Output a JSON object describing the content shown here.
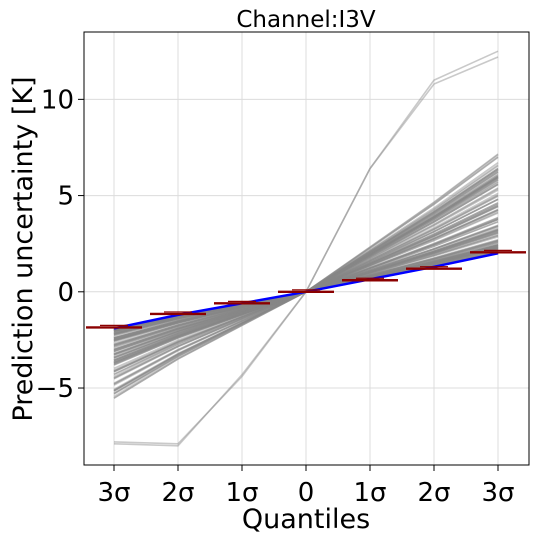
{
  "chart_data": {
    "type": "line",
    "title": "Channel:I3V",
    "xlabel": "Quantiles",
    "ylabel": "Prediction uncertainty [K]",
    "categories": [
      "3σ",
      "2σ",
      "1σ",
      "0",
      "1σ",
      "2σ",
      "3σ"
    ],
    "ylim": [
      -9,
      13.5
    ],
    "yticks": [
      -5,
      0,
      5,
      10
    ],
    "yticklabels": [
      "−5",
      "0",
      "5",
      "10"
    ],
    "grid": true,
    "series_style": {
      "ensemble_color": "#888888",
      "mean_color": "#0000ff",
      "observed_color": "#8b0000"
    },
    "observed": [
      -1.85,
      -1.15,
      -0.6,
      0,
      0.6,
      1.2,
      2.05
    ],
    "mean": [
      -1.9,
      -1.2,
      -0.6,
      0,
      0.65,
      1.3,
      2.0
    ],
    "ensemble_count": 150
  }
}
